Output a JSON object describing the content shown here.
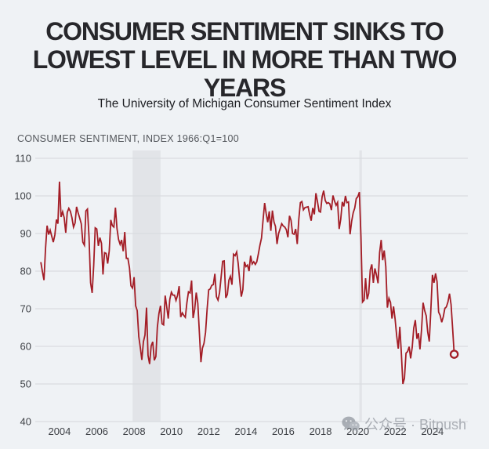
{
  "header": {
    "title_lines": [
      "CONSUMER SENTIMENT SINKS TO",
      "LOWEST LEVEL IN MORE THAN TWO",
      "YEARS"
    ],
    "subtitle": "The University of Michigan Consumer Sentiment Index"
  },
  "watermark": {
    "icon": "wechat-icon",
    "text": "公众号 · Bitpush"
  },
  "chart_data": {
    "type": "line",
    "title": "CONSUMER SENTIMENT, INDEX 1966:Q1=100",
    "xlabel": "",
    "ylabel": "",
    "xlim": [
      2002.7,
      2025.9
    ],
    "ylim": [
      40,
      110
    ],
    "y_ticks": [
      40,
      50,
      60,
      70,
      80,
      90,
      100,
      110
    ],
    "x_ticks": [
      2004,
      2006,
      2008,
      2010,
      2012,
      2014,
      2016,
      2018,
      2020,
      2022,
      2024
    ],
    "grid": true,
    "legend": false,
    "recession_bands": [
      {
        "start": 2007.92,
        "end": 2009.42
      },
      {
        "start": 2020.08,
        "end": 2020.22
      }
    ],
    "colors": {
      "line": "#a31d26",
      "background": "#eff2f5",
      "grid": "#d9dce0",
      "band": "#e2e4e8",
      "axis_text": "#3e4146",
      "label_text": "#54575c"
    },
    "last_point_marker": "open-circle",
    "last_value": 57.9,
    "series": [
      {
        "name": "University of Michigan Consumer Sentiment Index",
        "frequency": "monthly",
        "start_year": 2003,
        "start_month": 1,
        "values": [
          82.4,
          79.9,
          77.6,
          86,
          92.1,
          89.7,
          90.9,
          89.3,
          87.7,
          89.6,
          93.7,
          92.6,
          103.8,
          94.4,
          95.8,
          94.2,
          90.2,
          95.6,
          96.7,
          95.9,
          94.2,
          91.7,
          92.8,
          97.1,
          95.5,
          94.1,
          92.6,
          87.7,
          86.9,
          96,
          96.5,
          89.1,
          76.9,
          74.2,
          81.6,
          91.5,
          91.2,
          86.7,
          88.9,
          87.4,
          79.1,
          84.9,
          84.7,
          82,
          85.4,
          93.6,
          92.1,
          91.7,
          96.9,
          91.3,
          88.4,
          87.1,
          88.3,
          85.3,
          90.4,
          83.4,
          83.4,
          80.9,
          76.1,
          75.5,
          78.4,
          70.8,
          69.5,
          62.6,
          59.8,
          56.4,
          61.2,
          63,
          70.3,
          57.6,
          55.3,
          60.1,
          61.2,
          56.3,
          57.3,
          65.1,
          68.7,
          70.8,
          66,
          65.7,
          73.5,
          70.6,
          67.4,
          72.5,
          74.4,
          73.6,
          73.6,
          72.2,
          73.6,
          76,
          67.8,
          68.9,
          68.2,
          67.7,
          71.6,
          74.5,
          74.2,
          77.5,
          67.5,
          69.8,
          74.3,
          71.5,
          63.7,
          55.8,
          59.5,
          60.8,
          63.7,
          69.9,
          75,
          75.3,
          76.2,
          76.4,
          79.3,
          73.2,
          72.3,
          74.3,
          78.3,
          82.6,
          82.7,
          72.9,
          73.8,
          77.6,
          78.6,
          76.4,
          84.5,
          84.1,
          85.1,
          82.1,
          77.5,
          73.2,
          75.1,
          82.5,
          81.2,
          81.6,
          80,
          84.1,
          81.9,
          82.5,
          81.8,
          82.5,
          84.6,
          86.9,
          88.8,
          93.6,
          98.1,
          95.4,
          93,
          95.9,
          90.7,
          96.1,
          93.1,
          91.9,
          87.2,
          90,
          91.3,
          92.6,
          92,
          91.7,
          91,
          89,
          94.7,
          93.5,
          90,
          89.8,
          91.2,
          87.2,
          93.8,
          98.2,
          98.5,
          96.3,
          96.9,
          97,
          97.1,
          95,
          93.4,
          96.8,
          95.1,
          100.7,
          98.5,
          95.9,
          95.7,
          99.7,
          101.4,
          98.8,
          98,
          98.2,
          97.9,
          96.2,
          100.1,
          98.6,
          97.5,
          98.3,
          91.2,
          93.8,
          98.4,
          97.2,
          100,
          98.2,
          98.4,
          89.8,
          93.2,
          95.5,
          96.8,
          99.3,
          99.8,
          101,
          89.1,
          71.8,
          72.3,
          78.1,
          72.5,
          74.1,
          80.4,
          81.8,
          76.9,
          80.7,
          79,
          76.8,
          84.9,
          88.3,
          82.9,
          85.5,
          81.2,
          70.3,
          72.8,
          71.7,
          67.4,
          70.6,
          67.2,
          62.8,
          59.4,
          65.2,
          58.4,
          50,
          51.5,
          58.2,
          58.6,
          59.9,
          56.8,
          59.7,
          64.9,
          67,
          62,
          63.5,
          59.2,
          64.4,
          71.6,
          69.5,
          68.1,
          63.8,
          61.3,
          69.7,
          79,
          76.9,
          79.4,
          77.2,
          69.1,
          68.2,
          66.4,
          67.9,
          70.1,
          70.5,
          71.8,
          74,
          71.1,
          64.7,
          57.9
        ]
      }
    ]
  }
}
